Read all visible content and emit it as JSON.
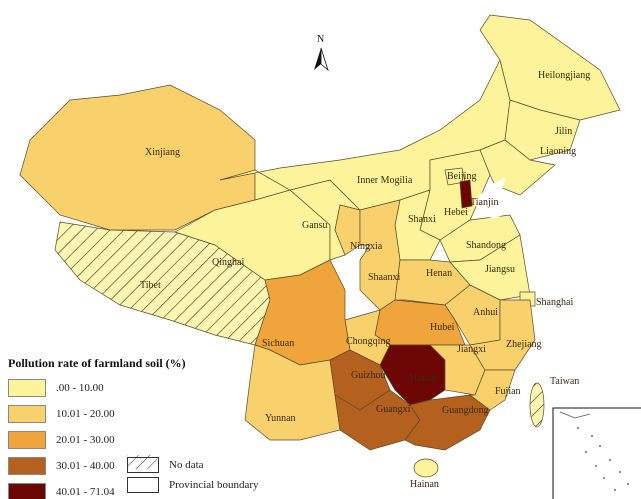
{
  "legend": {
    "title": "Pollution rate of farmland soil (%)",
    "classes": [
      {
        "label": ".00 - 10.00",
        "color": "#fdf39a"
      },
      {
        "label": "10.01 - 20.00",
        "color": "#f9d16c"
      },
      {
        "label": "20.01 - 30.00",
        "color": "#f0a43c"
      },
      {
        "label": "30.01 - 40.00",
        "color": "#b4601f"
      },
      {
        "label": "40.01 - 71.04",
        "color": "#6b0605"
      }
    ],
    "no_data": "No data",
    "boundary": "Provincial boundary"
  },
  "north_label": "N",
  "provinces": {
    "Heilongjiang": {
      "label": "Heilongjiang",
      "class": 0
    },
    "Jilin": {
      "label": "Jilin",
      "class": 0
    },
    "Liaoning": {
      "label": "Liaoning",
      "class": 0
    },
    "InnerMongolia": {
      "label": "Inner Mogilia",
      "class": 0
    },
    "Beijing": {
      "label": "Beijing",
      "class": 0
    },
    "Tianjin": {
      "label": "Tianjin",
      "class": 4
    },
    "Hebei": {
      "label": "Hebei",
      "class": 0
    },
    "Shanxi": {
      "label": "Shanxi",
      "class": 0
    },
    "Shandong": {
      "label": "Shandong",
      "class": 0
    },
    "Jiangsu": {
      "label": "Jiangsu",
      "class": 0
    },
    "Shanghai": {
      "label": "Shanghai",
      "class": 0
    },
    "Xinjiang": {
      "label": "Xinjiang",
      "class": 1
    },
    "Tibet": {
      "label": "Tibet",
      "class": null
    },
    "Qinghai": {
      "label": "Qinghai",
      "class": 0
    },
    "Gansu": {
      "label": "Gansu",
      "class": 0
    },
    "Ningxia": {
      "label": "Ningxia",
      "class": 1
    },
    "Shaanxi": {
      "label": "Shaanxi",
      "class": 1
    },
    "Henan": {
      "label": "Henan",
      "class": 1
    },
    "Anhui": {
      "label": "Anhui",
      "class": 1
    },
    "Hubei": {
      "label": "Hubei",
      "class": 2
    },
    "Chongqing": {
      "label": "Chongqing",
      "class": 1
    },
    "Sichuan": {
      "label": "Sichuan",
      "class": 2
    },
    "Yunnan": {
      "label": "Yunnan",
      "class": 1
    },
    "Guizhou": {
      "label": "Guizhou",
      "class": 3
    },
    "Hunan": {
      "label": "Hunan",
      "class": 4
    },
    "Guangxi": {
      "label": "Guangxi",
      "class": 3
    },
    "Guangdong": {
      "label": "Guangdong",
      "class": 3
    },
    "Jiangxi": {
      "label": "Jiangxi",
      "class": 1
    },
    "Zhejiang": {
      "label": "Zhejiang",
      "class": 1
    },
    "Fujian": {
      "label": "Fujian",
      "class": 1
    },
    "Taiwan": {
      "label": "Taiwan",
      "class": null
    },
    "Hainan": {
      "label": "Hainan",
      "class": 0
    }
  }
}
